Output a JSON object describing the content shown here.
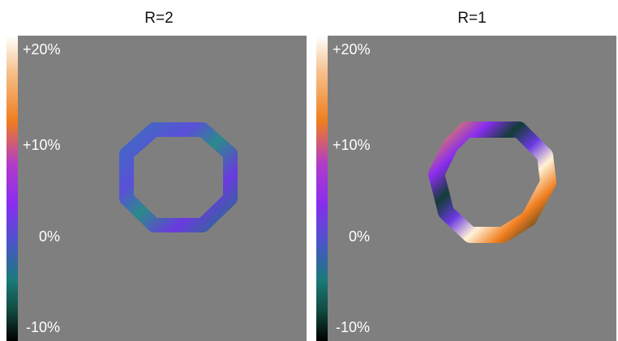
{
  "panels": [
    {
      "title": "R=2",
      "colorbar_labels": [
        "+20%",
        "+10%",
        "0%",
        "-10%"
      ]
    },
    {
      "title": "R=1",
      "colorbar_labels": [
        "+20%",
        "+10%",
        "0%",
        "-10%"
      ]
    }
  ]
}
